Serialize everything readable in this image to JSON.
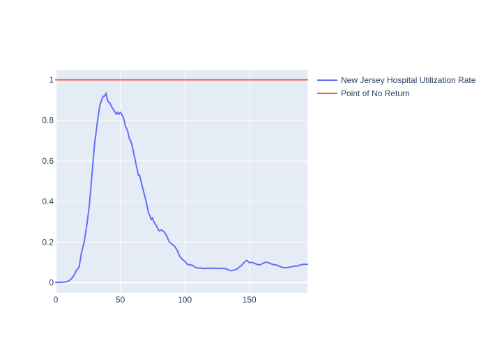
{
  "chart_data": {
    "type": "line",
    "xlim": [
      0,
      195
    ],
    "ylim": [
      -0.05,
      1.05
    ],
    "x_ticks": [
      0,
      50,
      100,
      150
    ],
    "y_ticks": [
      0,
      0.2,
      0.4,
      0.6,
      0.8,
      1
    ],
    "x_tick_labels": [
      "0",
      "50",
      "100",
      "150"
    ],
    "y_tick_labels": [
      "0",
      "0.2",
      "0.4",
      "0.6",
      "0.8",
      "1"
    ],
    "grid": true,
    "legend_position": "top-right outside",
    "plot_background": "#e5ecf6",
    "series": [
      {
        "name": "New Jersey Hospital Utilization Rate",
        "color": "#636efa",
        "x": [
          0,
          2,
          4,
          6,
          8,
          10,
          12,
          14,
          16,
          18,
          20,
          22,
          24,
          26,
          28,
          30,
          32,
          34,
          36,
          37,
          38,
          39,
          40,
          41,
          42,
          43,
          44,
          45,
          46,
          47,
          48,
          49,
          50,
          51,
          52,
          53,
          54,
          55,
          56,
          57,
          58,
          59,
          60,
          62,
          64,
          65,
          66,
          68,
          70,
          72,
          73,
          74,
          75,
          76,
          78,
          80,
          82,
          84,
          86,
          88,
          90,
          92,
          94,
          96,
          98,
          100,
          102,
          104,
          106,
          108,
          110,
          112,
          114,
          116,
          118,
          120,
          122,
          124,
          126,
          128,
          130,
          132,
          134,
          136,
          138,
          140,
          142,
          144,
          146,
          148,
          150,
          152,
          154,
          156,
          158,
          160,
          162,
          164,
          166,
          168,
          170,
          172,
          174,
          176,
          178,
          180,
          182,
          184,
          186,
          188,
          190,
          192,
          195
        ],
        "y": [
          0.001,
          0.001,
          0.002,
          0.002,
          0.004,
          0.008,
          0.018,
          0.035,
          0.06,
          0.075,
          0.15,
          0.2,
          0.28,
          0.38,
          0.53,
          0.68,
          0.78,
          0.87,
          0.91,
          0.92,
          0.92,
          0.935,
          0.9,
          0.89,
          0.885,
          0.87,
          0.86,
          0.85,
          0.84,
          0.83,
          0.84,
          0.83,
          0.84,
          0.83,
          0.82,
          0.8,
          0.77,
          0.76,
          0.74,
          0.71,
          0.7,
          0.68,
          0.65,
          0.59,
          0.53,
          0.53,
          0.5,
          0.45,
          0.4,
          0.34,
          0.33,
          0.31,
          0.32,
          0.3,
          0.28,
          0.255,
          0.26,
          0.25,
          0.23,
          0.2,
          0.19,
          0.18,
          0.16,
          0.13,
          0.115,
          0.105,
          0.09,
          0.088,
          0.085,
          0.075,
          0.072,
          0.072,
          0.07,
          0.07,
          0.071,
          0.07,
          0.072,
          0.07,
          0.07,
          0.071,
          0.07,
          0.068,
          0.062,
          0.058,
          0.062,
          0.065,
          0.075,
          0.085,
          0.1,
          0.11,
          0.098,
          0.1,
          0.095,
          0.09,
          0.087,
          0.093,
          0.1,
          0.1,
          0.095,
          0.09,
          0.088,
          0.085,
          0.078,
          0.075,
          0.073,
          0.075,
          0.077,
          0.08,
          0.082,
          0.083,
          0.088,
          0.09,
          0.09
        ]
      },
      {
        "name": "Point of No Return",
        "color": "#ef553b",
        "x": [
          0,
          195
        ],
        "y": [
          1,
          1
        ]
      }
    ]
  }
}
